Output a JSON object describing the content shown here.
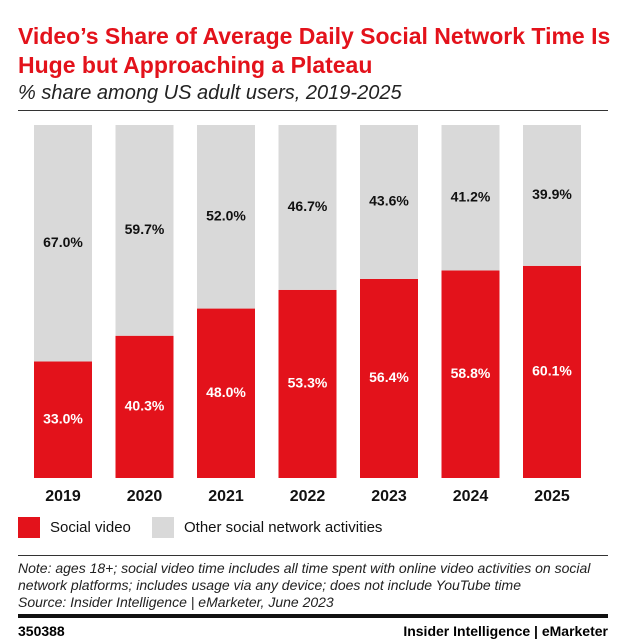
{
  "chart_data": {
    "type": "stacked_bar",
    "title": "Video’s Share of Average Daily Social Network Time Is Huge but Approaching a Plateau",
    "subtitle": "% share among US adult users, 2019-2025",
    "categories": [
      "2019",
      "2020",
      "2021",
      "2022",
      "2023",
      "2024",
      "2025"
    ],
    "series": [
      {
        "name": "Social video",
        "color": "#e3121b",
        "label_color": "#ffffff",
        "values": [
          33.0,
          40.3,
          48.0,
          53.3,
          56.4,
          58.8,
          60.1
        ],
        "value_labels": [
          "33.0%",
          "40.3%",
          "48.0%",
          "53.3%",
          "56.4%",
          "58.8%",
          "60.1%"
        ]
      },
      {
        "name": "Other social network activities",
        "color": "#d9d9d9",
        "label_color": "#111111",
        "values": [
          67.0,
          59.7,
          52.0,
          46.7,
          43.6,
          41.2,
          39.9
        ],
        "value_labels": [
          "67.0%",
          "59.7%",
          "52.0%",
          "46.7%",
          "43.6%",
          "41.2%",
          "39.9%"
        ]
      }
    ],
    "legend": "bottom-left",
    "note": "Note: ages 18+; social video time includes all time spent with online video activities on social network platforms; includes usage via any device; does not include YouTube time",
    "source": "Source: Insider Intelligence | eMarketer, June 2023",
    "chart_id": "350388",
    "brand": "Insider Intelligence | eMarketer"
  }
}
